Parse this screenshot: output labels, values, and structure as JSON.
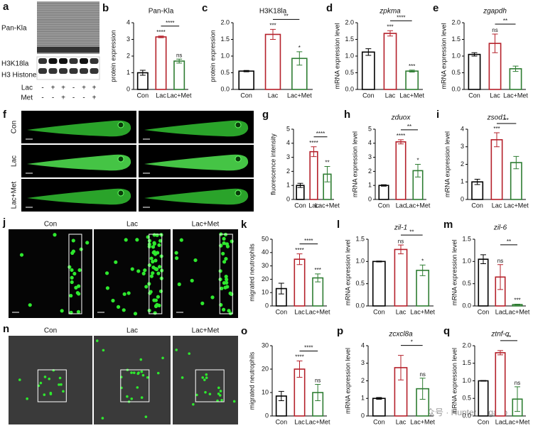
{
  "chart_data": [
    {
      "panel": "b",
      "type": "bar",
      "title": "Pan-Kla",
      "italic_title": false,
      "ylabel": "protein expression",
      "categories": [
        "Con",
        "Lac",
        "Lac+Met"
      ],
      "values": [
        1,
        3.15,
        1.7
      ],
      "errors": [
        0.15,
        0.05,
        0.12
      ],
      "colors": [
        "#000000",
        "#b5202a",
        "#2e7d32"
      ],
      "ylim": [
        0,
        4
      ],
      "yticks": [
        0,
        1,
        2,
        3,
        4
      ],
      "sig": [
        null,
        "****",
        "ns"
      ],
      "bracket": "****"
    },
    {
      "panel": "c",
      "type": "bar",
      "title": "H3K18la",
      "italic_title": false,
      "ylabel": "protein expression",
      "categories": [
        "Con",
        "Lac",
        "Lac+Met"
      ],
      "values": [
        0.55,
        1.65,
        0.93
      ],
      "errors": [
        0.02,
        0.15,
        0.2
      ],
      "colors": [
        "#000000",
        "#b5202a",
        "#2e7d32"
      ],
      "ylim": [
        0,
        2
      ],
      "yticks": [
        {
          "value": 0,
          "label": "0.0"
        },
        0.5,
        {
          "value": 1,
          "label": "1.0"
        },
        1.5,
        {
          "value": 2,
          "label": "2.0"
        }
      ],
      "sig": [
        null,
        "***",
        "*"
      ],
      "bracket": "**"
    },
    {
      "panel": "d",
      "type": "bar",
      "title": "zpkma",
      "italic_title": true,
      "ylabel": "mRNA expression level",
      "categories": [
        "Con",
        "Lac",
        "Lac+Met"
      ],
      "values": [
        1.12,
        1.68,
        0.55
      ],
      "errors": [
        0.1,
        0.08,
        0.03
      ],
      "colors": [
        "#000000",
        "#b5202a",
        "#2e7d32"
      ],
      "ylim": [
        0,
        2
      ],
      "yticks": [
        {
          "value": 0,
          "label": "0.0"
        },
        0.5,
        {
          "value": 1,
          "label": "1.0"
        },
        1.5,
        {
          "value": 2,
          "label": "2.0"
        }
      ],
      "sig": [
        null,
        "***",
        "***"
      ],
      "bracket": "****"
    },
    {
      "panel": "e",
      "type": "bar",
      "title": "zgapdh",
      "italic_title": true,
      "ylabel": "mRNA expression level",
      "categories": [
        "Con",
        "Lac",
        "Lac+Met"
      ],
      "values": [
        1.05,
        1.38,
        0.62
      ],
      "errors": [
        0.05,
        0.28,
        0.08
      ],
      "colors": [
        "#000000",
        "#b5202a",
        "#2e7d32"
      ],
      "ylim": [
        0,
        2
      ],
      "yticks": [
        {
          "value": 0,
          "label": "0.0"
        },
        0.5,
        {
          "value": 1,
          "label": "1.0"
        },
        1.5,
        {
          "value": 2,
          "label": "2.0"
        }
      ],
      "sig": [
        null,
        "ns",
        null
      ],
      "bracket": "**"
    },
    {
      "panel": "g",
      "type": "bar",
      "title": null,
      "italic_title": false,
      "ylabel": "fluorescence intensity",
      "categories": [
        "Con",
        "Lac",
        "Lac+Met"
      ],
      "values": [
        1.0,
        3.4,
        1.8
      ],
      "errors": [
        0.15,
        0.35,
        0.55
      ],
      "colors": [
        "#000000",
        "#b5202a",
        "#2e7d32"
      ],
      "ylim": [
        0,
        5
      ],
      "yticks": [
        0,
        1,
        2,
        3,
        4,
        5
      ],
      "sig": [
        null,
        "****",
        "**"
      ],
      "bracket": "****"
    },
    {
      "panel": "h",
      "type": "bar",
      "title": "zduox",
      "italic_title": true,
      "ylabel": "mRNA expression level",
      "categories": [
        "Con",
        "Lac",
        "Lac+Met"
      ],
      "values": [
        1.0,
        4.1,
        2.05
      ],
      "errors": [
        0.05,
        0.15,
        0.45
      ],
      "colors": [
        "#000000",
        "#b5202a",
        "#2e7d32"
      ],
      "ylim": [
        0,
        5
      ],
      "yticks": [
        0,
        1,
        2,
        3,
        4,
        5
      ],
      "sig": [
        null,
        "****",
        "*"
      ],
      "bracket": "**"
    },
    {
      "panel": "i",
      "type": "bar",
      "title": "zsod1",
      "italic_title": true,
      "ylabel": "mRNA expression level",
      "categories": [
        "Con",
        "Lac",
        "Lac+Met"
      ],
      "values": [
        1.0,
        3.4,
        2.1
      ],
      "errors": [
        0.15,
        0.4,
        0.35
      ],
      "colors": [
        "#000000",
        "#b5202a",
        "#2e7d32"
      ],
      "ylim": [
        0,
        4
      ],
      "yticks": [
        0,
        1,
        2,
        3,
        4
      ],
      "sig": [
        null,
        "***",
        null
      ],
      "bracket": "**"
    },
    {
      "panel": "k",
      "type": "bar",
      "title": null,
      "italic_title": false,
      "ylabel": "migrated neutrophils",
      "categories": [
        "Con",
        "Lac",
        "Lac+Met"
      ],
      "values": [
        13,
        35,
        21
      ],
      "errors": [
        4,
        4,
        3
      ],
      "colors": [
        "#000000",
        "#b5202a",
        "#2e7d32"
      ],
      "ylim": [
        0,
        50
      ],
      "yticks": [
        0,
        10,
        20,
        30,
        40,
        50
      ],
      "sig": [
        null,
        "****",
        "***"
      ],
      "bracket": "****"
    },
    {
      "panel": "l",
      "type": "bar",
      "title": "zil-1",
      "italic_title": true,
      "ylabel": "mRNA expression level",
      "categories": [
        "Con",
        "Lac",
        "Lac+Met"
      ],
      "values": [
        1.0,
        1.27,
        0.8
      ],
      "errors": [
        0.01,
        0.1,
        0.12
      ],
      "colors": [
        "#000000",
        "#b5202a",
        "#2e7d32"
      ],
      "ylim": [
        0,
        1.5
      ],
      "yticks": [
        {
          "value": 0,
          "label": "0.0"
        },
        0.5,
        {
          "value": 1,
          "label": "1.0"
        },
        1.5
      ],
      "sig": [
        null,
        "ns",
        "*"
      ],
      "bracket": "**"
    },
    {
      "panel": "m",
      "type": "bar",
      "title": "zil-6",
      "italic_title": true,
      "ylabel": "mRNA expression level",
      "categories": [
        "Con",
        "Lac",
        "Lac+Met"
      ],
      "values": [
        1.05,
        0.65,
        0.03
      ],
      "errors": [
        0.1,
        0.28,
        0.01
      ],
      "colors": [
        "#000000",
        "#b5202a",
        "#2e7d32"
      ],
      "ylim": [
        0,
        1.5
      ],
      "yticks": [
        {
          "value": 0,
          "label": "0.0"
        },
        0.5,
        {
          "value": 1,
          "label": "1.0"
        },
        1.5
      ],
      "sig": [
        null,
        "ns",
        "***"
      ],
      "bracket": "**"
    },
    {
      "panel": "o",
      "type": "bar",
      "title": null,
      "italic_title": false,
      "ylabel": "migrated neutrophils",
      "categories": [
        "Con",
        "Lac",
        "Lac+Met"
      ],
      "values": [
        8.5,
        20,
        10
      ],
      "errors": [
        2,
        3.5,
        3.5
      ],
      "colors": [
        "#000000",
        "#b5202a",
        "#2e7d32"
      ],
      "ylim": [
        0,
        30
      ],
      "yticks": [
        0,
        10,
        20,
        30
      ],
      "sig": [
        null,
        "****",
        "ns"
      ],
      "bracket": "****"
    },
    {
      "panel": "p",
      "type": "bar",
      "title": "zcxcl8a",
      "italic_title": true,
      "ylabel": "mRNA expression level",
      "categories": [
        "Con",
        "Lac",
        "Lac+Met"
      ],
      "values": [
        1.0,
        2.75,
        1.55
      ],
      "errors": [
        0.05,
        0.7,
        0.6
      ],
      "colors": [
        "#000000",
        "#b5202a",
        "#2e7d32"
      ],
      "ylim": [
        0,
        4
      ],
      "yticks": [
        0,
        1,
        2,
        3,
        4
      ],
      "sig": [
        null,
        null,
        "ns"
      ],
      "bracket": "*"
    },
    {
      "panel": "q",
      "type": "bar",
      "title": "ztnf-α",
      "italic_title": true,
      "ylabel": "mRNA expression level",
      "categories": [
        "Con",
        "Lac",
        "Lac+Met"
      ],
      "values": [
        1.0,
        1.8,
        0.48
      ],
      "errors": [
        0.01,
        0.06,
        0.35
      ],
      "colors": [
        "#000000",
        "#b5202a",
        "#2e7d32"
      ],
      "ylim": [
        0,
        2
      ],
      "yticks": [
        {
          "value": 0,
          "label": "0.0"
        },
        0.5,
        {
          "value": 1,
          "label": "1.0"
        },
        1.5,
        {
          "value": 2,
          "label": "2.0"
        }
      ],
      "sig": [
        null,
        null,
        "ns"
      ],
      "bracket": "**"
    }
  ],
  "images": {
    "a": {
      "panel": "a",
      "bands": [
        "Pan-Kla",
        "H3K18la",
        "H3 Histone"
      ],
      "rows": [
        {
          "name": "Lac",
          "signs": [
            "-",
            "+",
            "+",
            "-",
            "+",
            "+"
          ]
        },
        {
          "name": "Met",
          "signs": [
            "-",
            "-",
            "+",
            "-",
            "-",
            "+"
          ]
        }
      ]
    },
    "f": {
      "panel": "f",
      "groups": [
        "Con",
        "Lac",
        "Lac+Met"
      ]
    },
    "j": {
      "panel": "j",
      "groups": [
        "Con",
        "Lac",
        "Lac+Met"
      ]
    },
    "n": {
      "panel": "n",
      "groups": [
        "Con",
        "Lac",
        "Lac+Met"
      ]
    }
  },
  "watermark": "公众号 · Hunter Organo"
}
